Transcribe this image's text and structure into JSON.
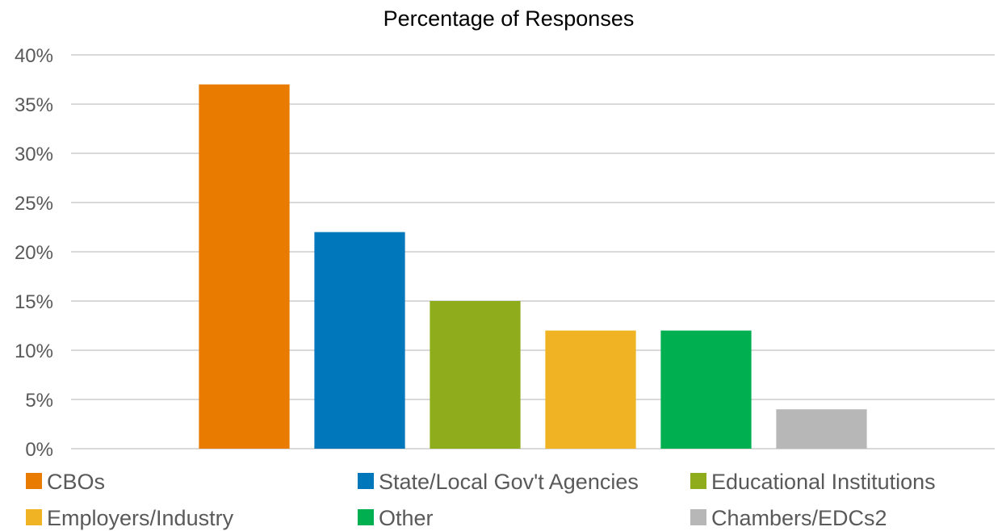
{
  "chart_data": {
    "type": "bar",
    "title": "Percentage of Responses",
    "xlabel": "",
    "ylabel": "",
    "ylim": [
      0,
      40
    ],
    "y_tick_step": 5,
    "y_tick_format": "percent",
    "grid": true,
    "legend_position": "bottom",
    "categories": [
      "",
      "CBOs",
      "State/Local Gov't Agencies",
      "Educational Institutions",
      "Employers/Industry",
      "Other",
      "Chambers/EDCs2",
      ""
    ],
    "series": [
      {
        "name": "CBOs",
        "category_index": 1,
        "value": 37,
        "color": "#e97b00"
      },
      {
        "name": "State/Local Gov't Agencies",
        "category_index": 2,
        "value": 22,
        "color": "#0077bb"
      },
      {
        "name": "Educational Institutions",
        "category_index": 3,
        "value": 15,
        "color": "#8fac1c"
      },
      {
        "name": "Employers/Industry",
        "category_index": 4,
        "value": 12,
        "color": "#f0b323"
      },
      {
        "name": "Other",
        "category_index": 5,
        "value": 12,
        "color": "#00b050"
      },
      {
        "name": "Chambers/EDCs2",
        "category_index": 6,
        "value": 4,
        "color": "#b7b7b7"
      }
    ]
  }
}
